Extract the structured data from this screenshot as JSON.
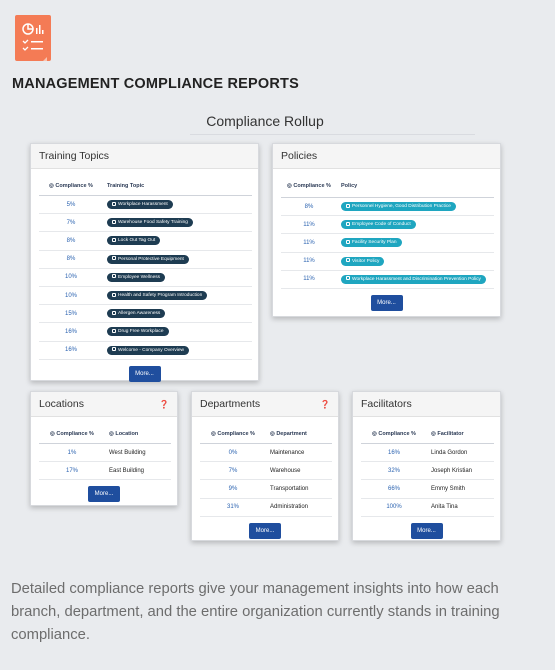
{
  "page": {
    "title": "MANAGEMENT COMPLIANCE REPORTS",
    "rollup_title": "Compliance Rollup",
    "description": "Detailed compliance reports give your management insights into how each branch, department, and the entire organization currently stands in training compliance.",
    "logo_icon": "report-document-icon",
    "accent_color": "#f47b55"
  },
  "training_topics": {
    "title": "Training Topics",
    "col_pct": "Compliance %",
    "col_name": "Training Topic",
    "rows": [
      {
        "pct": "5%",
        "name": "Workplace Harassment"
      },
      {
        "pct": "7%",
        "name": "Warehouse Food Safety Training"
      },
      {
        "pct": "8%",
        "name": "Lock Out Tag Out"
      },
      {
        "pct": "8%",
        "name": "Personal Protective Equipment"
      },
      {
        "pct": "10%",
        "name": "Employee Wellness"
      },
      {
        "pct": "10%",
        "name": "Health and Safety Program Introduction"
      },
      {
        "pct": "15%",
        "name": "Allergen Awareness"
      },
      {
        "pct": "16%",
        "name": "Drug Free Workplace"
      },
      {
        "pct": "16%",
        "name": "Welcome - Company Overview"
      }
    ],
    "more": "More..."
  },
  "policies": {
    "title": "Policies",
    "col_pct": "Compliance %",
    "col_name": "Policy",
    "rows": [
      {
        "pct": "8%",
        "name": "Personnel Hygiene, Good Distribution Practice"
      },
      {
        "pct": "11%",
        "name": "Employee Code of Conduct"
      },
      {
        "pct": "11%",
        "name": "Facility Security Plan"
      },
      {
        "pct": "11%",
        "name": "Visitor Policy"
      },
      {
        "pct": "11%",
        "name": "Workplace Harassment and Discrimination Prevention Policy"
      }
    ],
    "more": "More..."
  },
  "locations": {
    "title": "Locations",
    "col_pct": "Compliance %",
    "col_name": "Location",
    "rows": [
      {
        "pct": "1%",
        "name": "West Building"
      },
      {
        "pct": "17%",
        "name": "East Building"
      }
    ],
    "more": "More..."
  },
  "departments": {
    "title": "Departments",
    "col_pct": "Compliance %",
    "col_name": "Department",
    "rows": [
      {
        "pct": "0%",
        "name": "Maintenance"
      },
      {
        "pct": "7%",
        "name": "Warehouse"
      },
      {
        "pct": "9%",
        "name": "Transportation"
      },
      {
        "pct": "31%",
        "name": "Administration"
      }
    ],
    "more": "More..."
  },
  "facilitators": {
    "title": "Facilitators",
    "col_pct": "Compliance %",
    "col_name": "Facilitator",
    "rows": [
      {
        "pct": "16%",
        "name": "Linda Gordon"
      },
      {
        "pct": "32%",
        "name": "Joseph Kristian"
      },
      {
        "pct": "66%",
        "name": "Emmy Smith"
      },
      {
        "pct": "100%",
        "name": "Anita Tina"
      }
    ],
    "more": "More..."
  }
}
